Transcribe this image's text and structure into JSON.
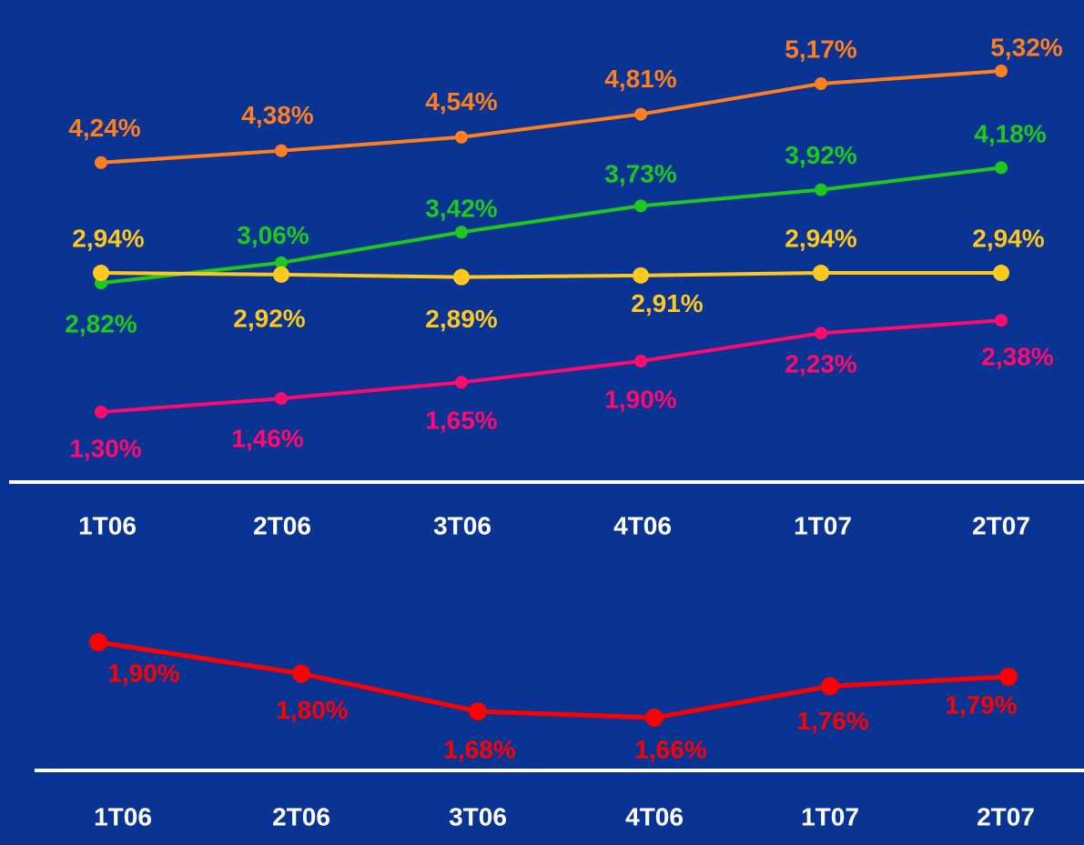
{
  "chart_data": [
    {
      "type": "line",
      "categories": [
        "1T06",
        "2T06",
        "3T06",
        "4T06",
        "1T07",
        "2T07"
      ],
      "series": [
        {
          "color": "#ff7f1e",
          "values": [
            4.24,
            4.38,
            4.54,
            4.81,
            5.17,
            5.32
          ],
          "value_labels": [
            "4,24%",
            "4,38%",
            "4,54%",
            "4,81%",
            "5,17%",
            "5,32%"
          ]
        },
        {
          "color": "#1ec81e",
          "values": [
            2.82,
            3.06,
            3.42,
            3.73,
            3.92,
            4.18
          ],
          "value_labels": [
            "2,82%",
            "3,06%",
            "3,42%",
            "3,73%",
            "3,92%",
            "4,18%"
          ]
        },
        {
          "color": "#ffc81e",
          "values": [
            2.94,
            2.92,
            2.89,
            2.91,
            2.94,
            2.94
          ],
          "value_labels": [
            "2,94%",
            "2,92%",
            "2,89%",
            "2,91%",
            "2,94%",
            "2,94%"
          ]
        },
        {
          "color": "#ff0a6e",
          "values": [
            1.3,
            1.46,
            1.65,
            1.9,
            2.23,
            2.38
          ],
          "value_labels": [
            "1,30%",
            "1,46%",
            "1,65%",
            "1,90%",
            "2,23%",
            "2,38%"
          ]
        }
      ]
    },
    {
      "type": "line",
      "categories": [
        "1T06",
        "2T06",
        "3T06",
        "4T06",
        "1T07",
        "2T07"
      ],
      "series": [
        {
          "color": "#ff0000",
          "values": [
            1.9,
            1.8,
            1.68,
            1.66,
            1.76,
            1.79
          ],
          "value_labels": [
            "1,90%",
            "1,80%",
            "1,68%",
            "1,66%",
            "1,76%",
            "1,79%"
          ]
        }
      ]
    }
  ]
}
